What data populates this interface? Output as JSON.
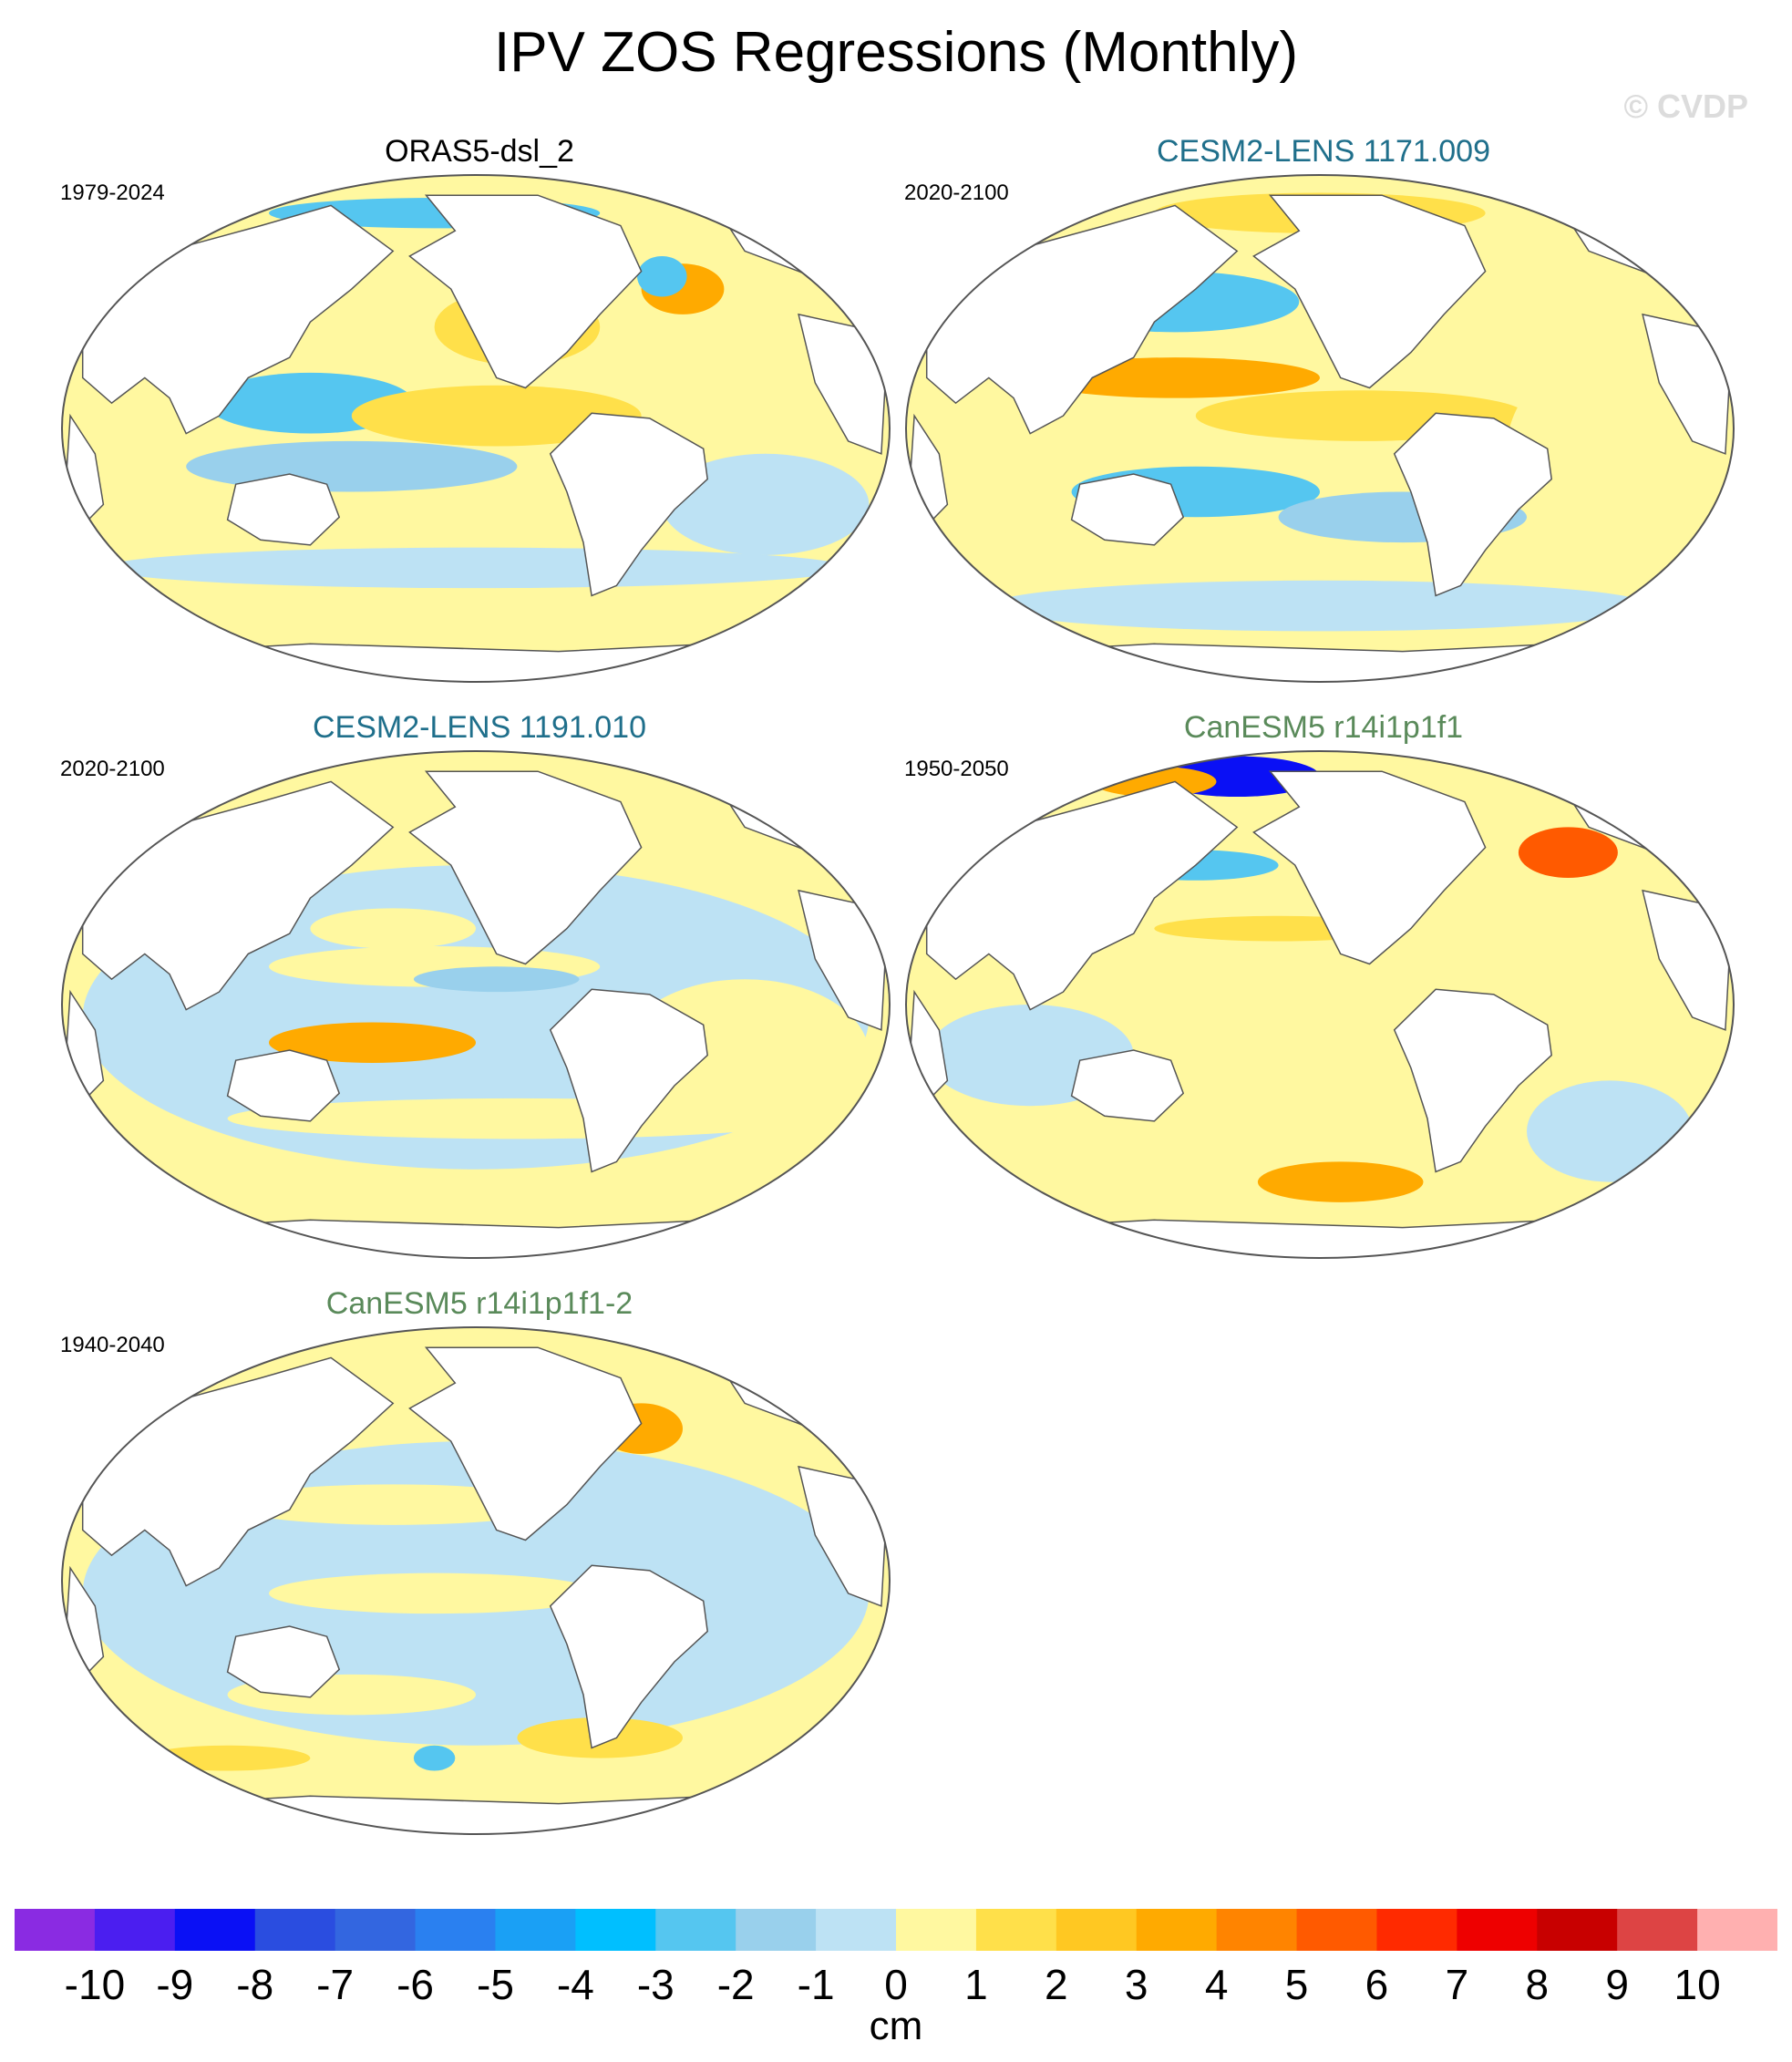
{
  "header": {
    "title": "IPV ZOS Regressions (Monthly)",
    "watermark": "© CVDP"
  },
  "panels": [
    {
      "title": "ORAS5-dsl_2",
      "period": "1979-2024",
      "title_color": "#000000"
    },
    {
      "title": "CESM2-LENS 1171.009",
      "period": "2020-2100",
      "title_color": "#1f6f8b"
    },
    {
      "title": "CESM2-LENS 1191.010",
      "period": "2020-2100",
      "title_color": "#1f6f8b"
    },
    {
      "title": "CanESM5 r14i1p1f1",
      "period": "1950-2050",
      "title_color": "#5a8a5a"
    },
    {
      "title": "CanESM5 r14i1p1f1-2",
      "period": "1940-2040",
      "title_color": "#5a8a5a"
    }
  ],
  "colorbar": {
    "unit": "cm",
    "labels": [
      "-10",
      "-9",
      "-8",
      "-7",
      "-6",
      "-5",
      "-4",
      "-3",
      "-2",
      "-1",
      "0",
      "1",
      "2",
      "3",
      "4",
      "5",
      "6",
      "7",
      "8",
      "9",
      "10"
    ],
    "colors": [
      "#8a2be2",
      "#4b1ef0",
      "#0a10f5",
      "#2a4de0",
      "#3366e0",
      "#2a80f0",
      "#1aa0f5",
      "#00bfff",
      "#55c6f0",
      "#99d0ec",
      "#bde2f4",
      "#fff8a0",
      "#ffe04a",
      "#ffc822",
      "#ffaa00",
      "#ff8400",
      "#ff5a00",
      "#ff2a00",
      "#ee0000",
      "#c80000",
      "#dd4444",
      "#ffb0b0"
    ]
  }
}
